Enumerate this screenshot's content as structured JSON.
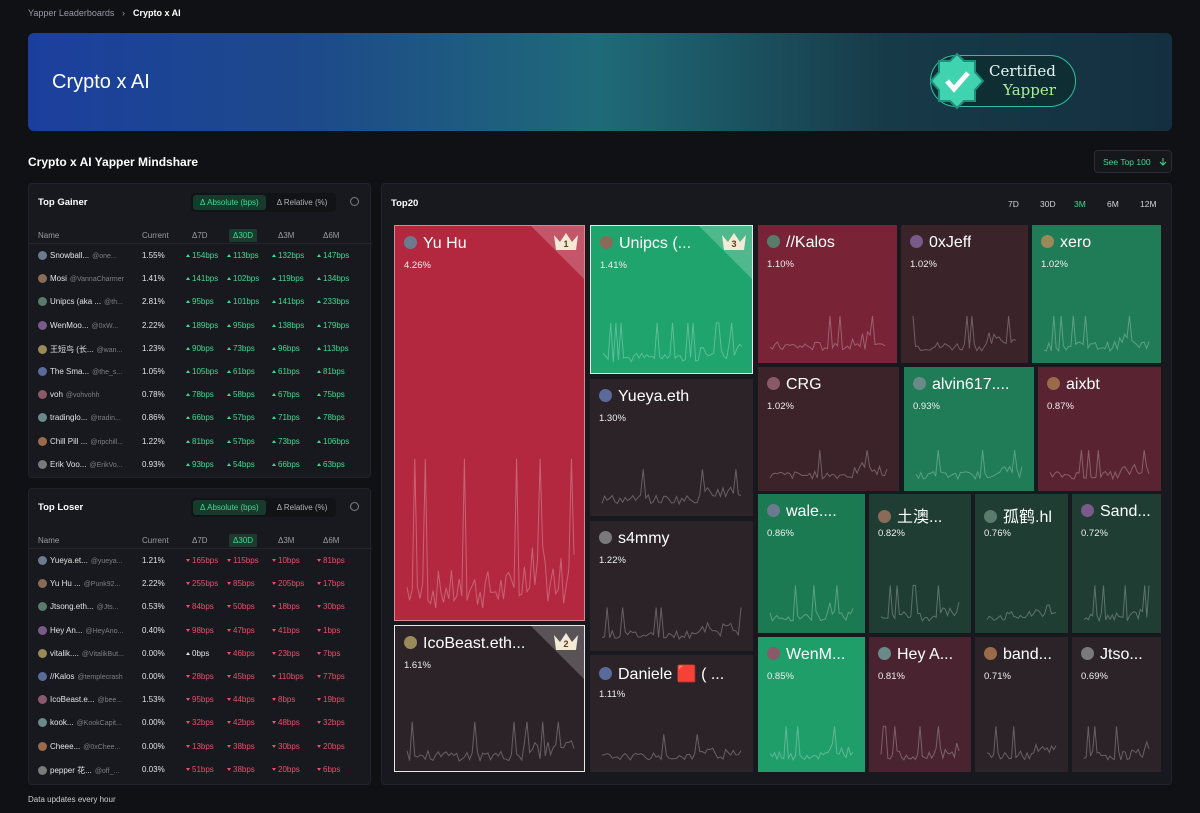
{
  "breadcrumb": [
    "Yapper Leaderboards",
    "Crypto x AI"
  ],
  "banner": {
    "title": "Crypto x AI",
    "badge": [
      "Certified",
      "Yapper"
    ]
  },
  "section": {
    "title": "Crypto x AI Yapper Mindshare",
    "button": "See Top 100"
  },
  "gainer": {
    "title": "Top Gainer",
    "tabs": [
      "Δ Absolute (bps)",
      "Δ Relative (%)"
    ],
    "columns": [
      "Name",
      "Current",
      "Δ7D",
      "Δ30D",
      "Δ3M",
      "Δ6M"
    ],
    "trend": "up",
    "rows": [
      {
        "name": "Snowball...",
        "handle": "@one...",
        "current": "1.55%",
        "changes": [
          "154bps",
          "113bps",
          "132bps",
          "147bps"
        ]
      },
      {
        "name": "Mosi",
        "handle": "@VannaCharmer",
        "current": "1.41%",
        "changes": [
          "141bps",
          "102bps",
          "119bps",
          "134bps"
        ]
      },
      {
        "name": "Unipcs (aka ...",
        "handle": "@th...",
        "current": "2.81%",
        "changes": [
          "95bps",
          "101bps",
          "141bps",
          "233bps"
        ]
      },
      {
        "name": "WenMoo...",
        "handle": "@0xW...",
        "current": "2.22%",
        "changes": [
          "189bps",
          "95bps",
          "138bps",
          "179bps"
        ]
      },
      {
        "name": "王短鸟 (长...",
        "handle": "@wan...",
        "current": "1.23%",
        "changes": [
          "90bps",
          "73bps",
          "96bps",
          "113bps"
        ]
      },
      {
        "name": "The Sma...",
        "handle": "@the_s...",
        "current": "1.05%",
        "changes": [
          "105bps",
          "61bps",
          "61bps",
          "81bps"
        ]
      },
      {
        "name": "voh",
        "handle": "@vohvohh",
        "current": "0.78%",
        "changes": [
          "78bps",
          "58bps",
          "67bps",
          "75bps"
        ]
      },
      {
        "name": "tradinglo...",
        "handle": "@tradin...",
        "current": "0.86%",
        "changes": [
          "66bps",
          "57bps",
          "71bps",
          "78bps"
        ]
      },
      {
        "name": "Chill Pill ...",
        "handle": "@ripchill...",
        "current": "1.22%",
        "changes": [
          "81bps",
          "57bps",
          "73bps",
          "106bps"
        ]
      },
      {
        "name": "Erik Voo...",
        "handle": "@ErikVo...",
        "current": "0.93%",
        "changes": [
          "93bps",
          "54bps",
          "66bps",
          "63bps"
        ]
      }
    ]
  },
  "loser": {
    "title": "Top Loser",
    "tabs": [
      "Δ Absolute (bps)",
      "Δ Relative (%)"
    ],
    "columns": [
      "Name",
      "Current",
      "Δ7D",
      "Δ30D",
      "Δ3M",
      "Δ6M"
    ],
    "trend": "down",
    "rows": [
      {
        "name": "Yueya.et...",
        "handle": "@yueya...",
        "current": "1.21%",
        "changes": [
          "165bps",
          "115bps",
          "10bps",
          "81bps"
        ]
      },
      {
        "name": "Yu Hu ...",
        "handle": "@Punk92...",
        "current": "2.22%",
        "changes": [
          "255bps",
          "85bps",
          "205bps",
          "17bps"
        ]
      },
      {
        "name": "Jtsong.eth...",
        "handle": "@Jts...",
        "current": "0.53%",
        "changes": [
          "84bps",
          "50bps",
          "18bps",
          "30bps"
        ]
      },
      {
        "name": "Hey An...",
        "handle": "@HeyAno...",
        "current": "0.40%",
        "changes": [
          "98bps",
          "47bps",
          "41bps",
          "1bps"
        ]
      },
      {
        "name": "vitalik....",
        "handle": "@VitalikBut...",
        "current": "0.00%",
        "changes": [
          "0bps",
          "46bps",
          "23bps",
          "7bps"
        ]
      },
      {
        "name": "//Kalos",
        "handle": "@templecrash",
        "current": "0.00%",
        "changes": [
          "28bps",
          "45bps",
          "110bps",
          "77bps"
        ]
      },
      {
        "name": "IcoBeast.e...",
        "handle": "@bee...",
        "current": "1.53%",
        "changes": [
          "95bps",
          "44bps",
          "8bps",
          "19bps"
        ]
      },
      {
        "name": "kook...",
        "handle": "@KookCapit...",
        "current": "0.00%",
        "changes": [
          "32bps",
          "42bps",
          "48bps",
          "32bps"
        ]
      },
      {
        "name": "Cheee...",
        "handle": "@0xChee...",
        "current": "0.00%",
        "changes": [
          "13bps",
          "38bps",
          "30bps",
          "20bps"
        ]
      },
      {
        "name": "pepper 花...",
        "handle": "@off_...",
        "current": "0.03%",
        "changes": [
          "51bps",
          "38bps",
          "20bps",
          "6bps"
        ]
      }
    ]
  },
  "top20": {
    "title": "Top20",
    "periods": [
      "7D",
      "30D",
      "3M",
      "6M",
      "12M"
    ],
    "tiles": [
      {
        "name": "Yu Hu",
        "share": "4.26%",
        "color": "#b3283f",
        "rank": "1"
      },
      {
        "name": "Unipcs (...",
        "share": "1.41%",
        "color": "#1fa46d",
        "rank": "3"
      },
      {
        "name": "//Kalos",
        "share": "1.10%",
        "color": "#782336"
      },
      {
        "name": "0xJeff",
        "share": "1.02%",
        "color": "#3a2329"
      },
      {
        "name": "xero",
        "share": "1.02%",
        "color": "#1f7c56"
      },
      {
        "name": "Yueya.eth",
        "share": "1.30%",
        "color": "#2b2328"
      },
      {
        "name": "CRG",
        "share": "1.02%",
        "color": "#3b2329"
      },
      {
        "name": "alvin617....",
        "share": "0.93%",
        "color": "#1f7c56"
      },
      {
        "name": "aixbt",
        "share": "0.87%",
        "color": "#5a2332"
      },
      {
        "name": "s4mmy",
        "share": "1.22%",
        "color": "#2b2328"
      },
      {
        "name": "wale....",
        "share": "0.86%",
        "color": "#1c7a52"
      },
      {
        "name": "土澳...",
        "share": "0.82%",
        "color": "#1f3d33"
      },
      {
        "name": "孤鹤.hl",
        "share": "0.76%",
        "color": "#1f3d33"
      },
      {
        "name": "Sand...",
        "share": "0.72%",
        "color": "#1f3d33"
      },
      {
        "name": "IcoBeast.eth...",
        "share": "1.61%",
        "color": "#2b2328",
        "rank": "2"
      },
      {
        "name": "Daniele 🟥 ( ...",
        "share": "1.11%",
        "color": "#2b2328"
      },
      {
        "name": "WenM...",
        "share": "0.85%",
        "color": "#1f9e6a"
      },
      {
        "name": "Hey A...",
        "share": "0.81%",
        "color": "#4a2331"
      },
      {
        "name": "band...",
        "share": "0.71%",
        "color": "#2b2328"
      },
      {
        "name": "Jtso...",
        "share": "0.69%",
        "color": "#2b2328"
      }
    ]
  },
  "footer": "Data updates every hour"
}
